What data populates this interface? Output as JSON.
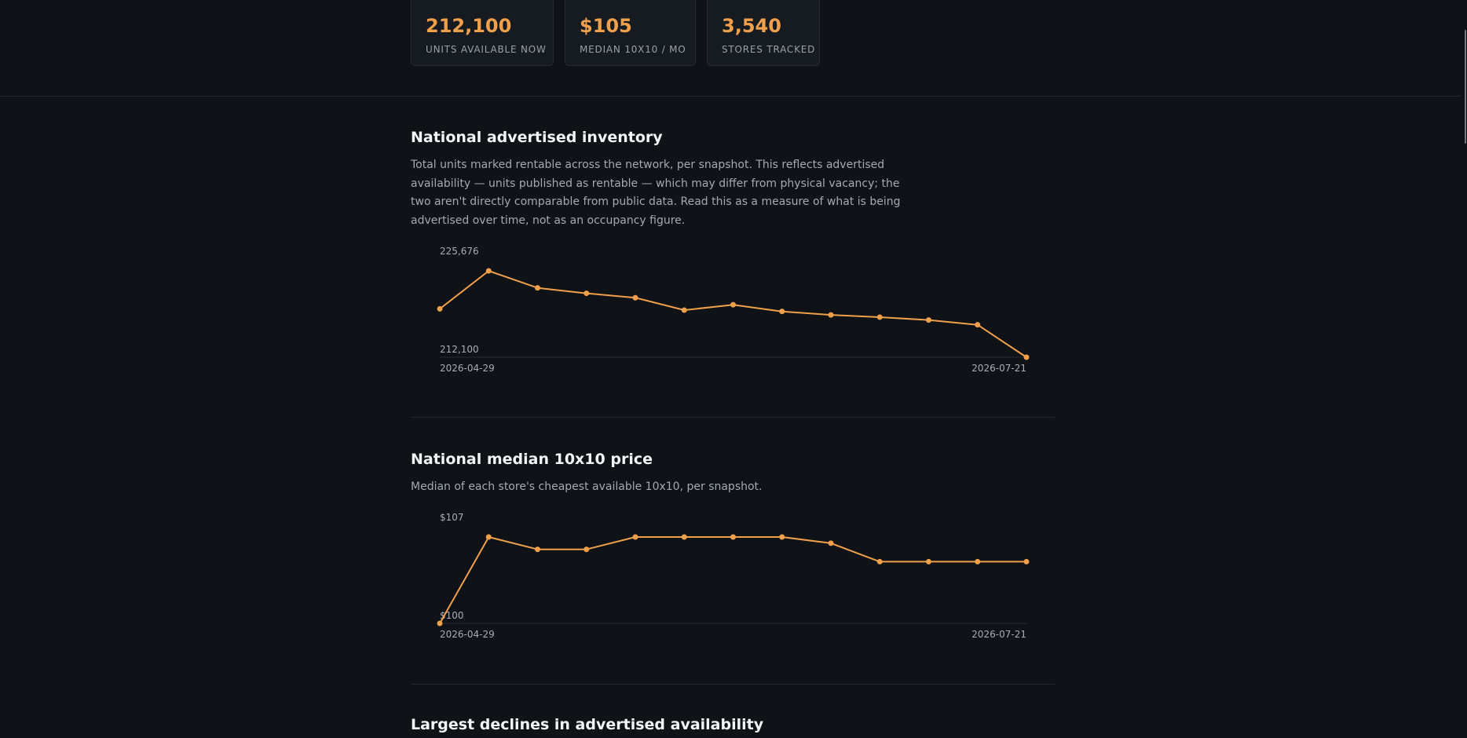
{
  "stats": [
    {
      "value": "212,100",
      "label": "UNITS AVAILABLE NOW"
    },
    {
      "value": "$105",
      "label": "MEDIAN 10X10 / MO"
    },
    {
      "value": "3,540",
      "label": "STORES TRACKED"
    }
  ],
  "sections": {
    "inventory": {
      "title": "National advertised inventory",
      "description": "Total units marked rentable across the network, per snapshot. This reflects advertised availability — units published as rentable — which may differ from physical vacancy; the two aren't directly comparable from public data. Read this as a measure of what is being advertised over time, not as an occupancy figure."
    },
    "price": {
      "title": "National median 10x10 price",
      "description": "Median of each store's cheapest available 10x10, per snapshot."
    },
    "declines": {
      "title": "Largest declines in advertised availability"
    }
  },
  "colors": {
    "accent": "#f0a04b",
    "background": "#0f1217",
    "card": "#161a21",
    "rule": "#242931"
  },
  "chart_data": [
    {
      "type": "line",
      "name": "inventory",
      "x": [
        "2026-04-29",
        "",
        "",
        "",
        "",
        "",
        "",
        "",
        "",
        "",
        "",
        "",
        "2026-07-21"
      ],
      "values": [
        219700,
        225676,
        223000,
        222150,
        221450,
        219500,
        220350,
        219300,
        218750,
        218400,
        217950,
        217200,
        212100
      ],
      "ylim": [
        212100,
        225676
      ],
      "y_tick_labels": [
        "225,676",
        "212,100"
      ],
      "x_tick_labels": [
        "2026-04-29",
        "2026-07-21"
      ],
      "color": "#f0a04b"
    },
    {
      "type": "line",
      "name": "price",
      "x": [
        "2026-04-29",
        "",
        "",
        "",
        "",
        "",
        "",
        "",
        "",
        "",
        "",
        "",
        "2026-07-21"
      ],
      "values": [
        100,
        107,
        106,
        106,
        107,
        107,
        107,
        107,
        106.5,
        105,
        105,
        105,
        105
      ],
      "ylim": [
        100,
        107
      ],
      "y_tick_labels": [
        "$107",
        "$100"
      ],
      "x_tick_labels": [
        "2026-04-29",
        "2026-07-21"
      ],
      "color": "#f0a04b"
    }
  ]
}
